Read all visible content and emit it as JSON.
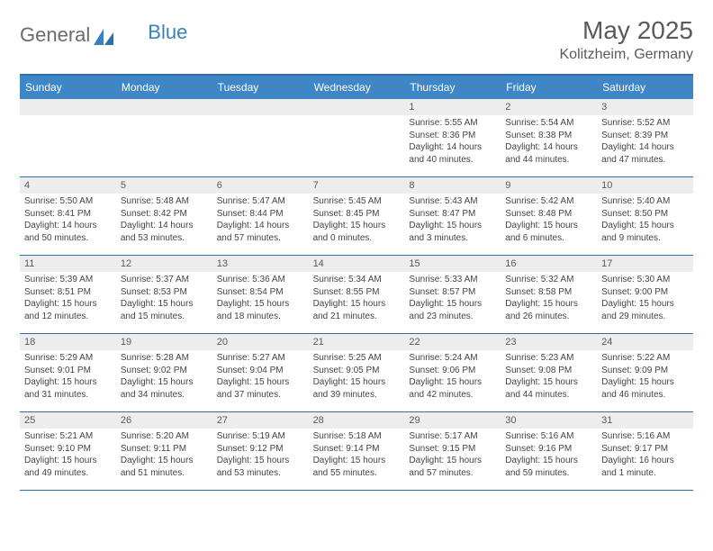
{
  "brand": {
    "part1": "General",
    "part2": "Blue"
  },
  "title": "May 2025",
  "location": "Kolitzheim, Germany",
  "header_bg": "#3f86c6",
  "header_text": "#ffffff",
  "rule_color": "#2e6fa9",
  "daynum_bg": "#ededed",
  "dows": [
    "Sunday",
    "Monday",
    "Tuesday",
    "Wednesday",
    "Thursday",
    "Friday",
    "Saturday"
  ],
  "weeks": [
    [
      null,
      null,
      null,
      null,
      {
        "n": "1",
        "sr": "5:55 AM",
        "ss": "8:36 PM",
        "dl": "14 hours and 40 minutes."
      },
      {
        "n": "2",
        "sr": "5:54 AM",
        "ss": "8:38 PM",
        "dl": "14 hours and 44 minutes."
      },
      {
        "n": "3",
        "sr": "5:52 AM",
        "ss": "8:39 PM",
        "dl": "14 hours and 47 minutes."
      }
    ],
    [
      {
        "n": "4",
        "sr": "5:50 AM",
        "ss": "8:41 PM",
        "dl": "14 hours and 50 minutes."
      },
      {
        "n": "5",
        "sr": "5:48 AM",
        "ss": "8:42 PM",
        "dl": "14 hours and 53 minutes."
      },
      {
        "n": "6",
        "sr": "5:47 AM",
        "ss": "8:44 PM",
        "dl": "14 hours and 57 minutes."
      },
      {
        "n": "7",
        "sr": "5:45 AM",
        "ss": "8:45 PM",
        "dl": "15 hours and 0 minutes."
      },
      {
        "n": "8",
        "sr": "5:43 AM",
        "ss": "8:47 PM",
        "dl": "15 hours and 3 minutes."
      },
      {
        "n": "9",
        "sr": "5:42 AM",
        "ss": "8:48 PM",
        "dl": "15 hours and 6 minutes."
      },
      {
        "n": "10",
        "sr": "5:40 AM",
        "ss": "8:50 PM",
        "dl": "15 hours and 9 minutes."
      }
    ],
    [
      {
        "n": "11",
        "sr": "5:39 AM",
        "ss": "8:51 PM",
        "dl": "15 hours and 12 minutes."
      },
      {
        "n": "12",
        "sr": "5:37 AM",
        "ss": "8:53 PM",
        "dl": "15 hours and 15 minutes."
      },
      {
        "n": "13",
        "sr": "5:36 AM",
        "ss": "8:54 PM",
        "dl": "15 hours and 18 minutes."
      },
      {
        "n": "14",
        "sr": "5:34 AM",
        "ss": "8:55 PM",
        "dl": "15 hours and 21 minutes."
      },
      {
        "n": "15",
        "sr": "5:33 AM",
        "ss": "8:57 PM",
        "dl": "15 hours and 23 minutes."
      },
      {
        "n": "16",
        "sr": "5:32 AM",
        "ss": "8:58 PM",
        "dl": "15 hours and 26 minutes."
      },
      {
        "n": "17",
        "sr": "5:30 AM",
        "ss": "9:00 PM",
        "dl": "15 hours and 29 minutes."
      }
    ],
    [
      {
        "n": "18",
        "sr": "5:29 AM",
        "ss": "9:01 PM",
        "dl": "15 hours and 31 minutes."
      },
      {
        "n": "19",
        "sr": "5:28 AM",
        "ss": "9:02 PM",
        "dl": "15 hours and 34 minutes."
      },
      {
        "n": "20",
        "sr": "5:27 AM",
        "ss": "9:04 PM",
        "dl": "15 hours and 37 minutes."
      },
      {
        "n": "21",
        "sr": "5:25 AM",
        "ss": "9:05 PM",
        "dl": "15 hours and 39 minutes."
      },
      {
        "n": "22",
        "sr": "5:24 AM",
        "ss": "9:06 PM",
        "dl": "15 hours and 42 minutes."
      },
      {
        "n": "23",
        "sr": "5:23 AM",
        "ss": "9:08 PM",
        "dl": "15 hours and 44 minutes."
      },
      {
        "n": "24",
        "sr": "5:22 AM",
        "ss": "9:09 PM",
        "dl": "15 hours and 46 minutes."
      }
    ],
    [
      {
        "n": "25",
        "sr": "5:21 AM",
        "ss": "9:10 PM",
        "dl": "15 hours and 49 minutes."
      },
      {
        "n": "26",
        "sr": "5:20 AM",
        "ss": "9:11 PM",
        "dl": "15 hours and 51 minutes."
      },
      {
        "n": "27",
        "sr": "5:19 AM",
        "ss": "9:12 PM",
        "dl": "15 hours and 53 minutes."
      },
      {
        "n": "28",
        "sr": "5:18 AM",
        "ss": "9:14 PM",
        "dl": "15 hours and 55 minutes."
      },
      {
        "n": "29",
        "sr": "5:17 AM",
        "ss": "9:15 PM",
        "dl": "15 hours and 57 minutes."
      },
      {
        "n": "30",
        "sr": "5:16 AM",
        "ss": "9:16 PM",
        "dl": "15 hours and 59 minutes."
      },
      {
        "n": "31",
        "sr": "5:16 AM",
        "ss": "9:17 PM",
        "dl": "16 hours and 1 minute."
      }
    ]
  ],
  "labels": {
    "sunrise": "Sunrise: ",
    "sunset": "Sunset: ",
    "daylight": "Daylight: "
  }
}
